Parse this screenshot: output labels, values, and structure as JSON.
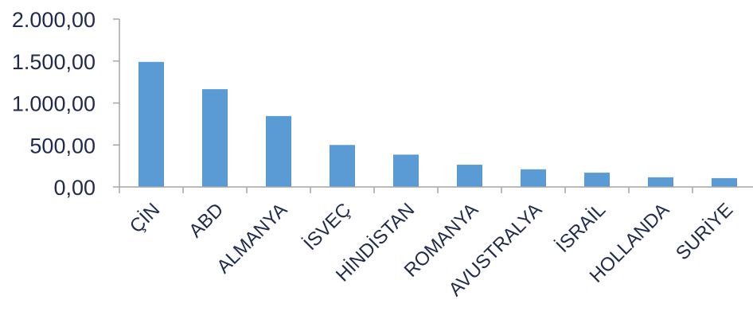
{
  "chart_data": {
    "type": "bar",
    "categories": [
      "ÇİN",
      "ABD",
      "ALMANYA",
      "İSVEÇ",
      "HİNDİSTAN",
      "ROMANYA",
      "AVUSTRALYA",
      "İSRAİL",
      "HOLLANDA",
      "SURİYE"
    ],
    "values": [
      1490,
      1165,
      845,
      500,
      385,
      265,
      210,
      170,
      115,
      105
    ],
    "y_ticks": [
      "0,00",
      "500,00",
      "1.000,00",
      "1.500,00",
      "2.000,00"
    ],
    "ylim": [
      0,
      2000
    ],
    "grid": false,
    "legend": "none",
    "title": "",
    "xlabel": "",
    "ylabel": "",
    "colors": {
      "bar": "#5b9bd5",
      "axis": "#a6a6a6",
      "text": "#1f2a4d"
    }
  }
}
